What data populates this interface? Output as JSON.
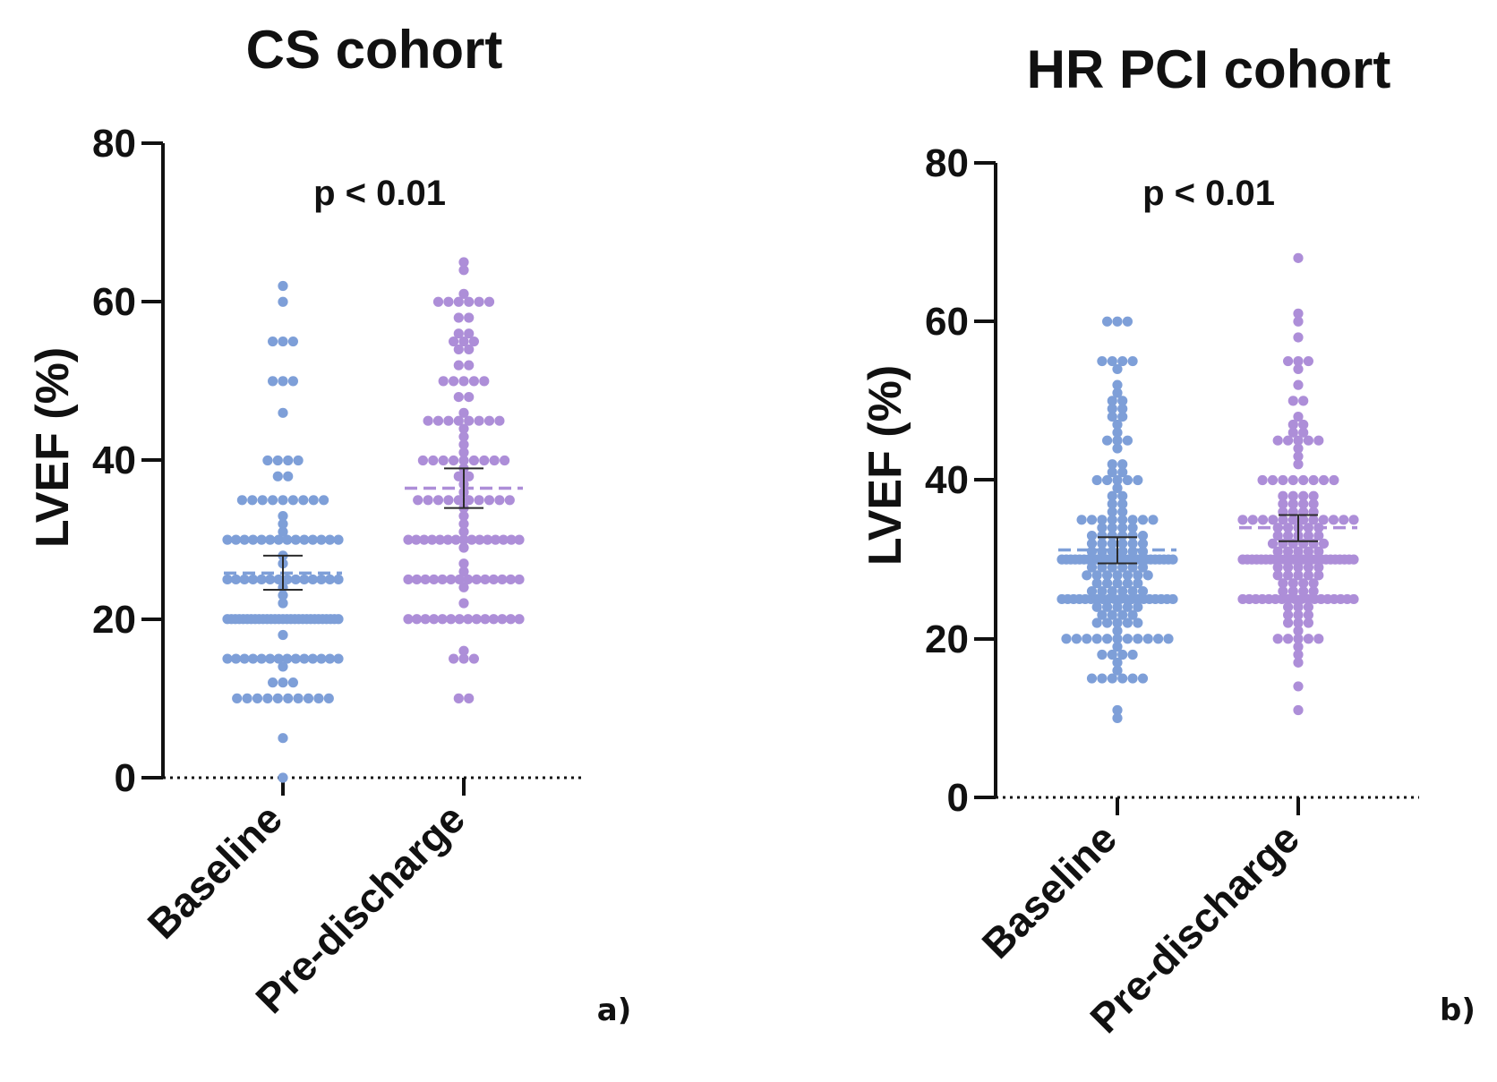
{
  "chart_data": [
    {
      "type": "scatter",
      "title": "CS cohort",
      "ylabel": "LVEF (%)",
      "xlabel": "",
      "ylim": [
        0,
        80
      ],
      "yticks": [
        0,
        20,
        40,
        60,
        80
      ],
      "categories": [
        "Baseline",
        "Pre-discharge"
      ],
      "annotation": "p < 0.01",
      "panel_label": "a)",
      "series": [
        {
          "name": "Baseline",
          "color": "#7e9fd8",
          "mean": 25.8,
          "sem_low": 23.7,
          "sem_high": 28,
          "values": [
            0,
            5,
            10,
            10,
            10,
            10,
            10,
            10,
            10,
            10,
            10,
            10,
            12,
            12,
            12,
            14,
            15,
            15,
            15,
            15,
            15,
            15,
            15,
            15,
            15,
            15,
            15,
            15,
            15,
            15,
            18,
            20,
            20,
            20,
            20,
            20,
            20,
            20,
            20,
            20,
            20,
            20,
            20,
            20,
            20,
            20,
            20,
            20,
            20,
            20,
            20,
            20,
            20,
            20,
            20,
            20,
            20,
            20,
            20,
            20,
            22,
            23,
            24,
            25,
            25,
            25,
            25,
            25,
            25,
            25,
            25,
            25,
            25,
            25,
            25,
            25,
            25,
            27,
            28,
            30,
            30,
            30,
            30,
            30,
            30,
            30,
            30,
            30,
            30,
            30,
            30,
            30,
            30,
            31,
            32,
            33,
            35,
            35,
            35,
            35,
            35,
            35,
            35,
            35,
            35,
            38,
            38,
            40,
            40,
            40,
            40,
            46,
            50,
            50,
            50,
            55,
            55,
            55,
            60,
            62
          ]
        },
        {
          "name": "Pre-discharge",
          "color": "#ad8ed8",
          "mean": 36.5,
          "sem_low": 34,
          "sem_high": 39,
          "values": [
            10,
            10,
            15,
            15,
            15,
            16,
            20,
            20,
            20,
            20,
            20,
            20,
            20,
            20,
            20,
            20,
            20,
            20,
            20,
            20,
            22,
            24,
            25,
            25,
            25,
            25,
            25,
            25,
            25,
            25,
            25,
            25,
            25,
            25,
            25,
            25,
            26,
            27,
            29,
            30,
            30,
            30,
            30,
            30,
            30,
            30,
            30,
            30,
            30,
            30,
            30,
            30,
            30,
            30,
            31,
            32,
            33,
            34,
            35,
            35,
            35,
            35,
            35,
            35,
            35,
            35,
            35,
            35,
            36,
            37,
            38,
            38,
            39,
            40,
            40,
            40,
            40,
            40,
            40,
            40,
            40,
            40,
            41,
            42,
            43,
            44,
            45,
            45,
            45,
            45,
            45,
            45,
            45,
            45,
            46,
            48,
            48,
            50,
            50,
            50,
            50,
            50,
            52,
            52,
            54,
            54,
            55,
            55,
            55,
            56,
            56,
            58,
            58,
            60,
            60,
            60,
            60,
            60,
            60,
            61,
            64,
            65
          ]
        }
      ]
    },
    {
      "type": "scatter",
      "title": "HR PCI cohort",
      "ylabel": "LVEF (%)",
      "xlabel": "",
      "ylim": [
        0,
        80
      ],
      "yticks": [
        0,
        20,
        40,
        60,
        80
      ],
      "categories": [
        "Baseline",
        "Pre-discharge"
      ],
      "annotation": "p < 0.01",
      "panel_label": "b)",
      "series": [
        {
          "name": "Baseline",
          "color": "#7e9fd8",
          "mean": 31.2,
          "sem_low": 29.5,
          "sem_high": 32.8,
          "values": [
            10,
            11,
            15,
            15,
            15,
            15,
            15,
            15,
            16,
            17,
            18,
            18,
            18,
            18,
            19,
            20,
            20,
            20,
            20,
            20,
            20,
            20,
            20,
            20,
            20,
            20,
            21,
            22,
            22,
            22,
            22,
            22,
            23,
            23,
            23,
            23,
            24,
            24,
            24,
            24,
            24,
            25,
            25,
            25,
            25,
            25,
            25,
            25,
            25,
            25,
            25,
            25,
            25,
            25,
            25,
            25,
            25,
            25,
            25,
            25,
            25,
            26,
            26,
            26,
            26,
            26,
            26,
            27,
            27,
            27,
            27,
            27,
            28,
            28,
            28,
            28,
            28,
            28,
            28,
            29,
            29,
            29,
            29,
            29,
            29,
            30,
            30,
            30,
            30,
            30,
            30,
            30,
            30,
            30,
            30,
            30,
            30,
            30,
            30,
            30,
            30,
            30,
            30,
            30,
            30,
            30,
            30,
            30,
            30,
            30,
            30,
            31,
            31,
            31,
            31,
            31,
            31,
            32,
            32,
            32,
            32,
            32,
            32,
            33,
            33,
            33,
            33,
            33,
            33,
            34,
            34,
            34,
            34,
            35,
            35,
            35,
            35,
            35,
            35,
            35,
            35,
            36,
            36,
            37,
            37,
            38,
            38,
            39,
            40,
            40,
            40,
            40,
            40,
            41,
            41,
            42,
            42,
            44,
            45,
            45,
            45,
            46,
            47,
            48,
            48,
            49,
            49,
            50,
            50,
            51,
            52,
            54,
            55,
            55,
            55,
            55,
            60,
            60,
            60
          ]
        },
        {
          "name": "Pre-discharge",
          "color": "#ad8ed8",
          "mean": 34,
          "sem_low": 32.3,
          "sem_high": 35.6,
          "values": [
            11,
            14,
            17,
            18,
            19,
            20,
            20,
            20,
            20,
            20,
            21,
            22,
            22,
            22,
            23,
            23,
            23,
            24,
            24,
            24,
            25,
            25,
            25,
            25,
            25,
            25,
            25,
            25,
            25,
            25,
            25,
            25,
            25,
            25,
            25,
            25,
            25,
            25,
            26,
            26,
            26,
            26,
            27,
            27,
            27,
            27,
            28,
            28,
            28,
            28,
            28,
            29,
            29,
            29,
            29,
            29,
            30,
            30,
            30,
            30,
            30,
            30,
            30,
            30,
            30,
            30,
            30,
            30,
            30,
            30,
            30,
            30,
            30,
            30,
            30,
            30,
            30,
            30,
            30,
            30,
            30,
            31,
            31,
            31,
            31,
            31,
            32,
            32,
            32,
            32,
            32,
            32,
            33,
            33,
            33,
            33,
            33,
            34,
            34,
            34,
            34,
            34,
            35,
            35,
            35,
            35,
            35,
            35,
            35,
            35,
            35,
            35,
            35,
            35,
            36,
            36,
            36,
            36,
            37,
            37,
            37,
            37,
            38,
            38,
            38,
            38,
            40,
            40,
            40,
            40,
            40,
            40,
            40,
            40,
            42,
            43,
            44,
            45,
            45,
            45,
            45,
            45,
            46,
            46,
            47,
            47,
            48,
            50,
            50,
            52,
            54,
            55,
            55,
            55,
            58,
            60,
            61,
            68
          ]
        }
      ]
    }
  ]
}
